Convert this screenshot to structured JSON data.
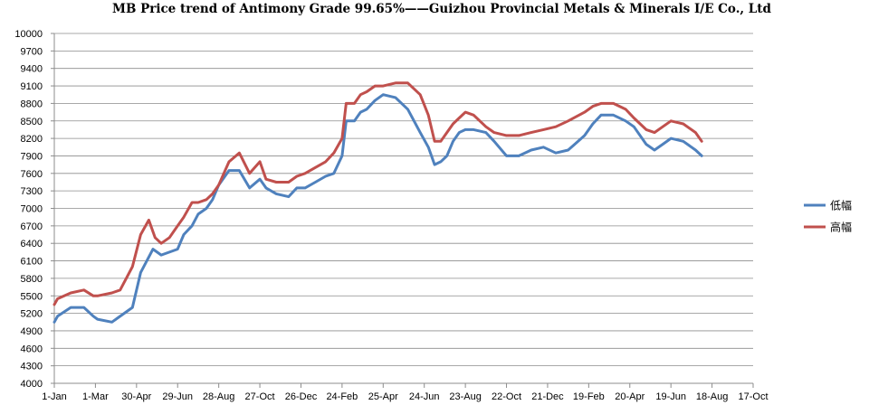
{
  "chart_data": {
    "type": "line",
    "title": "MB Price trend of Antimony Grade 99.65%——Guizhou Provincial Metals & Minerals I/E Co., Ltd",
    "xlabel": "",
    "ylabel": "",
    "ylim": [
      4000,
      10000
    ],
    "yticks": [
      4000,
      4300,
      4600,
      4900,
      5200,
      5500,
      5800,
      6100,
      6400,
      6700,
      7000,
      7300,
      7600,
      7900,
      8200,
      8500,
      8800,
      9100,
      9400,
      9700,
      10000
    ],
    "xtick_labels": [
      "1-Jan",
      "1-Mar",
      "30-Apr",
      "29-Jun",
      "28-Aug",
      "27-Oct",
      "26-Dec",
      "24-Feb",
      "25-Apr",
      "24-Jun",
      "23-Aug",
      "22-Oct",
      "21-Dec",
      "19-Feb",
      "20-Apr",
      "19-Jun",
      "18-Aug",
      "17-Oct"
    ],
    "grid": true,
    "legend_position": "right",
    "series": [
      {
        "name": "低幅",
        "color": "#4F81BD",
        "x": [
          0,
          0.08,
          0.4,
          0.72,
          0.95,
          1.05,
          1.4,
          1.9,
          2.1,
          2.4,
          2.6,
          3.0,
          3.15,
          3.35,
          3.5,
          3.7,
          3.85,
          4.0,
          4.25,
          4.5,
          4.75,
          5.0,
          5.15,
          5.4,
          5.7,
          5.9,
          6.1,
          6.35,
          6.6,
          6.8,
          7.0,
          7.1,
          7.3,
          7.45,
          7.6,
          7.8,
          8.0,
          8.3,
          8.6,
          8.9,
          9.1,
          9.25,
          9.4,
          9.55,
          9.7,
          9.85,
          10.0,
          10.2,
          10.5,
          10.7,
          11.0,
          11.3,
          11.6,
          11.9,
          12.2,
          12.5,
          12.9,
          13.1,
          13.3,
          13.6,
          13.9,
          14.1,
          14.4,
          14.6,
          14.8,
          15.0,
          15.3,
          15.6,
          15.75
        ],
        "values": [
          5050,
          5150,
          5300,
          5300,
          5150,
          5100,
          5050,
          5300,
          5900,
          6300,
          6200,
          6300,
          6550,
          6700,
          6900,
          7000,
          7150,
          7400,
          7650,
          7650,
          7350,
          7500,
          7350,
          7250,
          7200,
          7350,
          7350,
          7450,
          7550,
          7600,
          7900,
          8500,
          8500,
          8650,
          8700,
          8850,
          8950,
          8900,
          8700,
          8300,
          8050,
          7750,
          7800,
          7900,
          8150,
          8300,
          8350,
          8350,
          8300,
          8150,
          7900,
          7900,
          8000,
          8050,
          7950,
          8000,
          8250,
          8450,
          8600,
          8600,
          8500,
          8400,
          8100,
          8000,
          8100,
          8200,
          8150,
          8000,
          7900
        ]
      },
      {
        "name": "高幅",
        "color": "#C0504D",
        "x": [
          0,
          0.08,
          0.4,
          0.72,
          0.95,
          1.05,
          1.4,
          1.6,
          1.9,
          2.1,
          2.3,
          2.45,
          2.6,
          2.8,
          3.0,
          3.15,
          3.35,
          3.5,
          3.7,
          3.85,
          4.0,
          4.25,
          4.5,
          4.75,
          5.0,
          5.15,
          5.4,
          5.7,
          5.9,
          6.1,
          6.35,
          6.6,
          6.8,
          7.0,
          7.1,
          7.3,
          7.45,
          7.6,
          7.8,
          8.0,
          8.3,
          8.6,
          8.9,
          9.1,
          9.25,
          9.4,
          9.55,
          9.7,
          9.85,
          10.0,
          10.2,
          10.5,
          10.7,
          11.0,
          11.3,
          11.6,
          11.9,
          12.2,
          12.5,
          12.9,
          13.1,
          13.3,
          13.6,
          13.9,
          14.1,
          14.4,
          14.6,
          14.8,
          15.0,
          15.3,
          15.6,
          15.75
        ],
        "values": [
          5350,
          5450,
          5550,
          5600,
          5500,
          5500,
          5550,
          5600,
          6000,
          6550,
          6800,
          6500,
          6400,
          6500,
          6700,
          6850,
          7100,
          7100,
          7150,
          7250,
          7400,
          7800,
          7950,
          7600,
          7800,
          7500,
          7450,
          7450,
          7550,
          7600,
          7700,
          7800,
          7950,
          8200,
          8800,
          8800,
          8950,
          9000,
          9100,
          9100,
          9150,
          9150,
          8950,
          8600,
          8150,
          8150,
          8300,
          8450,
          8550,
          8650,
          8600,
          8400,
          8300,
          8250,
          8250,
          8300,
          8350,
          8400,
          8500,
          8650,
          8750,
          8800,
          8800,
          8700,
          8550,
          8350,
          8300,
          8400,
          8500,
          8450,
          8300,
          8150
        ]
      }
    ]
  }
}
